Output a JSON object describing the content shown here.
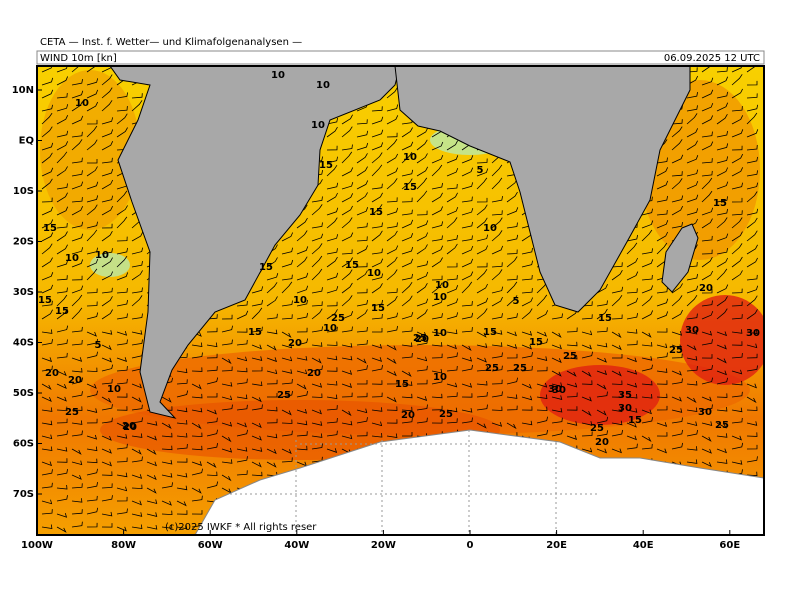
{
  "header": {
    "title": "CETA — Inst. f. Wetter— und Klimafolgenanalysen —",
    "variable": "WIND 10m [kn]",
    "datetime": "06.09.2025 12 UTC"
  },
  "map": {
    "lat_labels": [
      "10N",
      "EQ",
      "10S",
      "20S",
      "30S",
      "40S",
      "50S",
      "60S",
      "70S"
    ],
    "lon_labels": [
      "100W",
      "80W",
      "60W",
      "40W",
      "20W",
      "0",
      "20E",
      "40E",
      "60E"
    ],
    "wind_speed_labels": [
      "10",
      "10",
      "10",
      "10",
      "15",
      "10",
      "15",
      "5",
      "15",
      "10",
      "15",
      "10",
      "10",
      "15",
      "10",
      "10",
      "15",
      "10",
      "15",
      "5",
      "15",
      "10",
      "15",
      "15",
      "20",
      "25",
      "10",
      "20",
      "5",
      "15",
      "20",
      "10",
      "15",
      "20",
      "25",
      "20",
      "25",
      "30",
      "20",
      "25",
      "25",
      "20",
      "25",
      "30",
      "35",
      "30",
      "15",
      "30",
      "25",
      "20",
      "25",
      "30",
      "25",
      "30",
      "10",
      "20",
      "15",
      "10",
      "25",
      "20",
      "15",
      "25",
      "15"
    ],
    "copyright": "(c)2025 IWKF * All rights reser"
  }
}
